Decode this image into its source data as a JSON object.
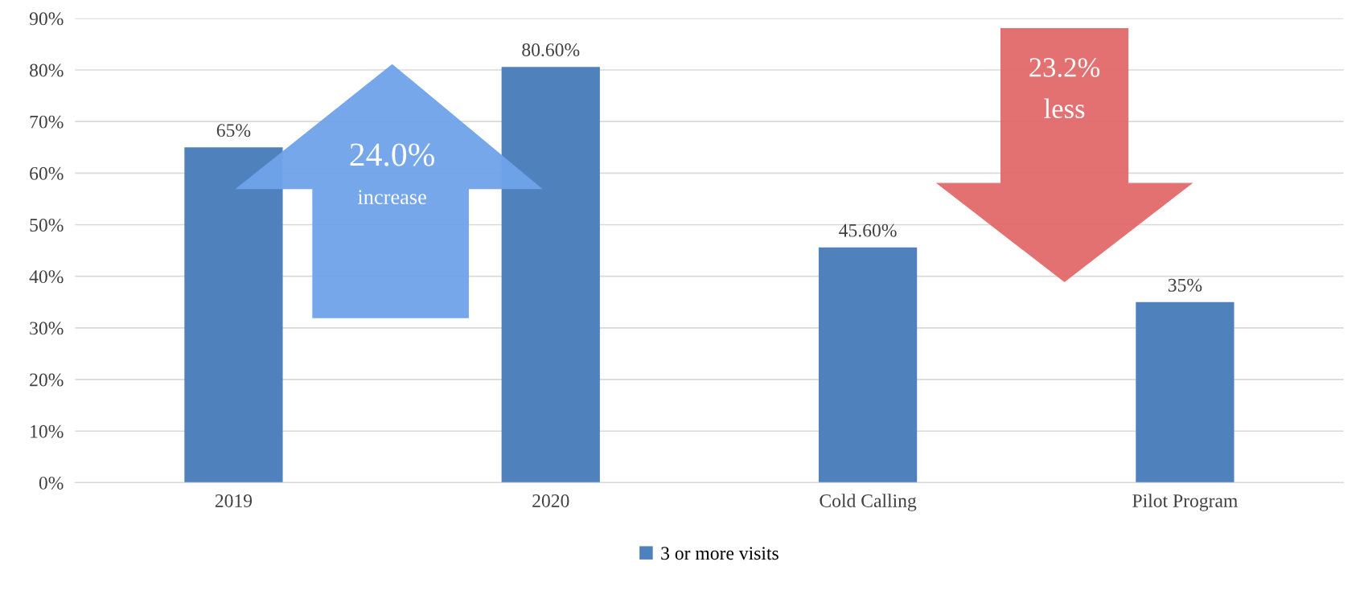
{
  "chart_data": {
    "type": "bar",
    "categories": [
      "2019",
      "2020",
      "Cold Calling",
      "Pilot Program"
    ],
    "series": [
      {
        "name": "3 or more visits",
        "color": "#4f81bd",
        "values": [
          65,
          80.6,
          45.6,
          35
        ],
        "value_labels": [
          "65%",
          "80.60%",
          "45.60%",
          "35%"
        ]
      }
    ],
    "ylim": [
      0,
      90
    ],
    "yticks": [
      {
        "value": 0,
        "label": "0%"
      },
      {
        "value": 10,
        "label": "10%"
      },
      {
        "value": 20,
        "label": "20%"
      },
      {
        "value": 30,
        "label": "30%"
      },
      {
        "value": 40,
        "label": "40%"
      },
      {
        "value": 50,
        "label": "50%"
      },
      {
        "value": 60,
        "label": "60%"
      },
      {
        "value": 70,
        "label": "70%"
      },
      {
        "value": 80,
        "label": "80%"
      },
      {
        "value": 90,
        "label": "90%"
      }
    ],
    "grid": "y",
    "legend": "bottom",
    "annotations": [
      "24.0%",
      "increase",
      "23.2%",
      "less"
    ]
  }
}
